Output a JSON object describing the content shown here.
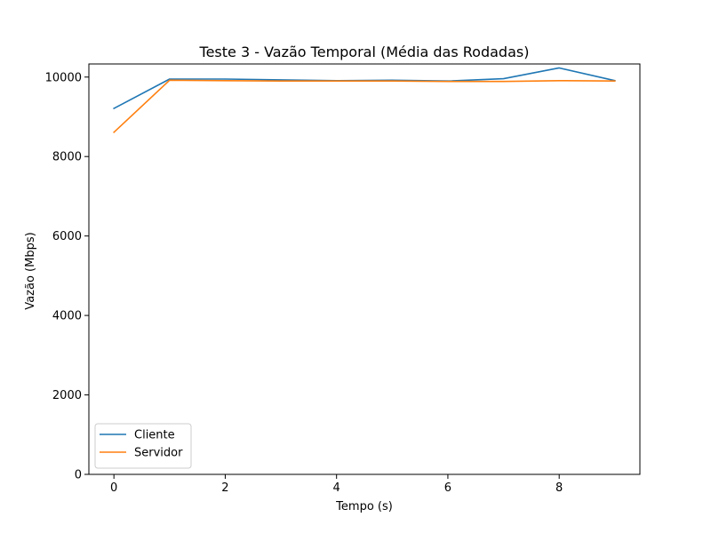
{
  "chart_data": {
    "type": "line",
    "title": "Teste 3 - Vazão Temporal (Média das Rodadas)",
    "xlabel": "Tempo (s)",
    "ylabel": "Vazão (Mbps)",
    "x": [
      0,
      1,
      2,
      3,
      4,
      5,
      6,
      7,
      8,
      9
    ],
    "xlim": [
      -0.45,
      9.45
    ],
    "ylim": [
      0,
      10330
    ],
    "xticks": [
      0,
      2,
      4,
      6,
      8
    ],
    "yticks": [
      0,
      2000,
      4000,
      6000,
      8000,
      10000
    ],
    "grid": false,
    "legend_position": "lower-left",
    "series": [
      {
        "name": "Cliente",
        "color": "#1f77b4",
        "values": [
          9210,
          9950,
          9950,
          9930,
          9910,
          9920,
          9900,
          9960,
          10230,
          9910
        ]
      },
      {
        "name": "Servidor",
        "color": "#ff7f0e",
        "values": [
          8610,
          9920,
          9910,
          9900,
          9900,
          9900,
          9890,
          9890,
          9910,
          9900
        ]
      }
    ]
  }
}
